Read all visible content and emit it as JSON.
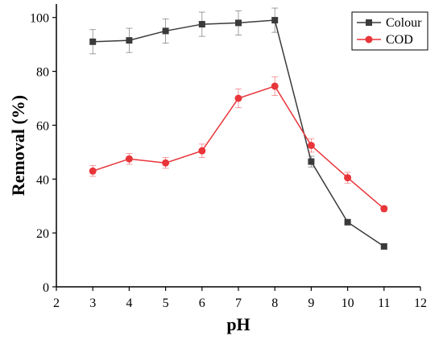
{
  "chart_data": {
    "type": "line",
    "xlabel": "pH",
    "ylabel": "Removal (%)",
    "xlim": [
      2,
      12
    ],
    "ylim": [
      0,
      105
    ],
    "xticks": [
      2,
      3,
      4,
      5,
      6,
      7,
      8,
      9,
      10,
      11,
      12
    ],
    "yticks": [
      0,
      20,
      40,
      60,
      80,
      100
    ],
    "grid": false,
    "legend_position": "top-right",
    "series": [
      {
        "name": "Colour",
        "color": "#3a3a3a",
        "marker": "square",
        "x": [
          3,
          4,
          5,
          6,
          7,
          8,
          9,
          10,
          11
        ],
        "y": [
          91,
          91.5,
          95,
          97.5,
          98,
          99,
          46.5,
          24,
          15
        ],
        "error": [
          4.5,
          4.5,
          4.5,
          4.5,
          4.5,
          4.5,
          2,
          0,
          0
        ]
      },
      {
        "name": "COD",
        "color": "#e8353a",
        "marker": "circle",
        "x": [
          3,
          4,
          5,
          6,
          7,
          8,
          9,
          10,
          11
        ],
        "y": [
          43,
          47.5,
          46,
          50.5,
          70,
          74.5,
          52.5,
          40.5,
          29
        ],
        "error": [
          2,
          2,
          2,
          2.5,
          3.5,
          3.5,
          2.5,
          2,
          1
        ]
      }
    ]
  }
}
